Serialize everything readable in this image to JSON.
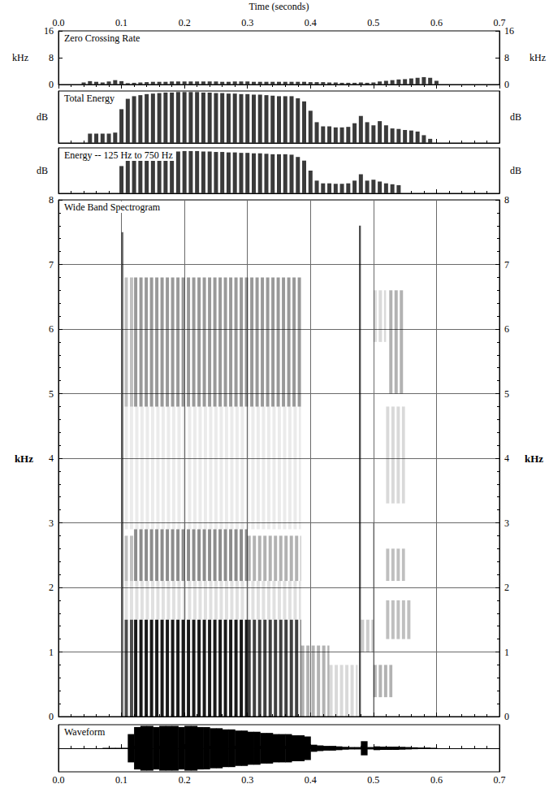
{
  "chart_data": [
    {
      "type": "bar",
      "title": "Zero Crossing Rate",
      "xlabel": "Time (seconds)",
      "ylabel": "kHz",
      "xlim": [
        0,
        0.7
      ],
      "xticks": [
        {
          "value": 0,
          "label": "0.0"
        },
        0.1,
        0.2,
        0.3,
        0.4,
        0.5,
        0.6,
        0.7
      ],
      "ylim": [
        0,
        16
      ],
      "yticks": [
        0,
        8,
        16
      ],
      "color": "#3a3a3a",
      "x": [
        0.04,
        0.05,
        0.06,
        0.07,
        0.08,
        0.09,
        0.1,
        0.11,
        0.12,
        0.13,
        0.14,
        0.15,
        0.16,
        0.17,
        0.18,
        0.19,
        0.2,
        0.21,
        0.22,
        0.23,
        0.24,
        0.25,
        0.26,
        0.27,
        0.28,
        0.29,
        0.3,
        0.31,
        0.32,
        0.33,
        0.34,
        0.35,
        0.36,
        0.37,
        0.38,
        0.39,
        0.4,
        0.41,
        0.42,
        0.43,
        0.44,
        0.45,
        0.46,
        0.47,
        0.48,
        0.49,
        0.5,
        0.51,
        0.52,
        0.53,
        0.54,
        0.55,
        0.56,
        0.57,
        0.58,
        0.59,
        0.6
      ],
      "values": [
        0.6,
        1.0,
        0.8,
        0.6,
        0.9,
        1.3,
        1.0,
        0.4,
        0.5,
        0.6,
        0.7,
        0.8,
        0.8,
        0.8,
        0.9,
        0.9,
        0.9,
        0.9,
        0.9,
        0.9,
        0.9,
        0.9,
        0.8,
        0.8,
        0.9,
        0.9,
        0.9,
        0.8,
        0.8,
        0.8,
        0.8,
        0.8,
        0.8,
        0.8,
        0.8,
        0.8,
        0.7,
        0.7,
        0.7,
        0.6,
        0.6,
        0.5,
        0.5,
        0.5,
        0.6,
        0.5,
        0.6,
        0.9,
        1.1,
        1.3,
        1.5,
        1.6,
        1.8,
        2.0,
        2.2,
        2.0,
        1.1
      ]
    },
    {
      "type": "bar",
      "title": "Total Energy",
      "ylabel": "dB",
      "tick_labels": false,
      "xlim": [
        0,
        0.7
      ],
      "xticks": [
        {
          "value": 0,
          "label": "0.0"
        },
        0.1,
        0.2,
        0.3,
        0.4,
        0.5,
        0.6,
        0.7
      ],
      "ylim": [
        0,
        100
      ],
      "color": "#3a3a3a",
      "x": [
        0.05,
        0.06,
        0.07,
        0.08,
        0.09,
        0.1,
        0.11,
        0.12,
        0.13,
        0.14,
        0.15,
        0.16,
        0.17,
        0.18,
        0.19,
        0.2,
        0.21,
        0.22,
        0.23,
        0.24,
        0.25,
        0.26,
        0.27,
        0.28,
        0.29,
        0.3,
        0.31,
        0.32,
        0.33,
        0.34,
        0.35,
        0.36,
        0.37,
        0.38,
        0.39,
        0.4,
        0.41,
        0.42,
        0.43,
        0.44,
        0.45,
        0.46,
        0.47,
        0.48,
        0.49,
        0.5,
        0.51,
        0.52,
        0.53,
        0.54,
        0.55,
        0.56,
        0.57,
        0.58,
        0.59
      ],
      "values": [
        18,
        18,
        18,
        18,
        20,
        65,
        85,
        90,
        92,
        94,
        95,
        96,
        97,
        97,
        98,
        98,
        98,
        98,
        97,
        97,
        96,
        96,
        95,
        95,
        94,
        94,
        93,
        93,
        92,
        91,
        90,
        90,
        90,
        86,
        80,
        62,
        40,
        32,
        32,
        30,
        30,
        31,
        38,
        52,
        40,
        34,
        42,
        34,
        28,
        27,
        25,
        24,
        22,
        15,
        8
      ]
    },
    {
      "type": "bar",
      "title": "Energy -- 125 Hz to 750 Hz",
      "ylabel": "dB",
      "tick_labels": false,
      "xlim": [
        0,
        0.7
      ],
      "xticks": [
        {
          "value": 0,
          "label": "0.0"
        },
        0.1,
        0.2,
        0.3,
        0.4,
        0.5,
        0.6,
        0.7
      ],
      "ylim": [
        0,
        100
      ],
      "color": "#3a3a3a",
      "x": [
        0.1,
        0.11,
        0.12,
        0.13,
        0.14,
        0.15,
        0.16,
        0.17,
        0.18,
        0.19,
        0.2,
        0.21,
        0.22,
        0.23,
        0.24,
        0.25,
        0.26,
        0.27,
        0.28,
        0.29,
        0.3,
        0.31,
        0.32,
        0.33,
        0.34,
        0.35,
        0.36,
        0.37,
        0.38,
        0.39,
        0.4,
        0.41,
        0.42,
        0.43,
        0.44,
        0.45,
        0.46,
        0.47,
        0.48,
        0.49,
        0.5,
        0.51,
        0.52,
        0.53,
        0.54
      ],
      "values": [
        60,
        78,
        84,
        86,
        88,
        89,
        90,
        91,
        92,
        92,
        93,
        93,
        93,
        92,
        92,
        91,
        91,
        90,
        90,
        89,
        89,
        88,
        88,
        87,
        86,
        86,
        86,
        85,
        80,
        72,
        50,
        28,
        22,
        22,
        21,
        21,
        22,
        28,
        42,
        28,
        30,
        26,
        22,
        20,
        18
      ]
    },
    {
      "type": "heatmap",
      "title": "Wide Band Spectrogram",
      "ylabel": "kHz",
      "tick_labels": "y",
      "grid": true,
      "xlim": [
        0,
        0.7
      ],
      "xticks": [
        {
          "value": 0,
          "label": "0.0"
        },
        0.1,
        0.2,
        0.3,
        0.4,
        0.5,
        0.6,
        0.7
      ],
      "ylim": [
        0,
        8
      ],
      "yticks": [
        0,
        1,
        2,
        3,
        4,
        5,
        6,
        7,
        8
      ],
      "color": "#000000",
      "cells": [
        [
          0.1,
          0.103,
          0,
          7.5,
          0.6
        ],
        [
          0.105,
          0.12,
          0,
          1.5,
          0.7
        ],
        [
          0.12,
          0.3,
          0,
          1.5,
          0.9
        ],
        [
          0.3,
          0.385,
          0,
          1.5,
          0.75
        ],
        [
          0.105,
          0.385,
          1.5,
          2.1,
          0.12
        ],
        [
          0.12,
          0.3,
          2.1,
          2.9,
          0.45
        ],
        [
          0.3,
          0.385,
          2.1,
          2.8,
          0.3
        ],
        [
          0.105,
          0.12,
          2.1,
          2.8,
          0.25
        ],
        [
          0.105,
          0.385,
          2.9,
          4.8,
          0.08
        ],
        [
          0.105,
          0.12,
          4.8,
          6.8,
          0.25
        ],
        [
          0.12,
          0.385,
          4.8,
          6.8,
          0.4
        ],
        [
          0.385,
          0.43,
          0,
          1.1,
          0.3
        ],
        [
          0.43,
          0.475,
          0,
          0.8,
          0.15
        ],
        [
          0.477,
          0.48,
          0,
          7.6,
          0.7
        ],
        [
          0.499,
          0.501,
          0,
          3,
          0.25
        ],
        [
          0.48,
          0.5,
          1.0,
          1.5,
          0.2
        ],
        [
          0.5,
          0.53,
          0.3,
          0.8,
          0.3
        ],
        [
          0.52,
          0.56,
          1.2,
          1.8,
          0.25
        ],
        [
          0.52,
          0.55,
          2.1,
          2.6,
          0.25
        ],
        [
          0.52,
          0.55,
          3.3,
          4.8,
          0.15
        ],
        [
          0.525,
          0.55,
          5.0,
          6.6,
          0.3
        ],
        [
          0.5,
          0.52,
          5.8,
          6.6,
          0.15
        ]
      ]
    },
    {
      "type": "waveform",
      "title": "Waveform",
      "tick_labels": "x",
      "xlim": [
        0,
        0.7
      ],
      "xticks": [
        {
          "value": 0,
          "label": "0.0"
        },
        0.1,
        0.2,
        0.3,
        0.4,
        0.5,
        0.6,
        0.7
      ],
      "ylim": [
        -1,
        1
      ],
      "color": "#000000",
      "x": [
        0.07,
        0.08,
        0.09,
        0.1,
        0.11,
        0.12,
        0.13,
        0.14,
        0.15,
        0.16,
        0.17,
        0.18,
        0.19,
        0.2,
        0.21,
        0.22,
        0.23,
        0.24,
        0.25,
        0.26,
        0.27,
        0.28,
        0.29,
        0.3,
        0.31,
        0.32,
        0.33,
        0.34,
        0.35,
        0.36,
        0.37,
        0.38,
        0.39,
        0.4,
        0.41,
        0.42,
        0.43,
        0.44,
        0.45,
        0.46,
        0.47,
        0.48,
        0.49,
        0.5,
        0.51,
        0.52,
        0.53,
        0.54,
        0.55,
        0.56,
        0.57,
        0.58,
        0.59,
        0.6
      ],
      "values": [
        0.01,
        0.01,
        0.01,
        0.02,
        0.6,
        0.9,
        0.95,
        0.95,
        0.9,
        0.95,
        0.95,
        0.95,
        0.9,
        0.95,
        0.95,
        0.9,
        0.9,
        0.85,
        0.85,
        0.8,
        0.8,
        0.75,
        0.75,
        0.7,
        0.7,
        0.65,
        0.65,
        0.6,
        0.6,
        0.6,
        0.55,
        0.55,
        0.5,
        0.15,
        0.12,
        0.1,
        0.1,
        0.08,
        0.06,
        0.05,
        0.05,
        0.3,
        0.05,
        0.08,
        0.07,
        0.07,
        0.07,
        0.06,
        0.05,
        0.04,
        0.03,
        0.03,
        0.02,
        0.01
      ]
    }
  ]
}
